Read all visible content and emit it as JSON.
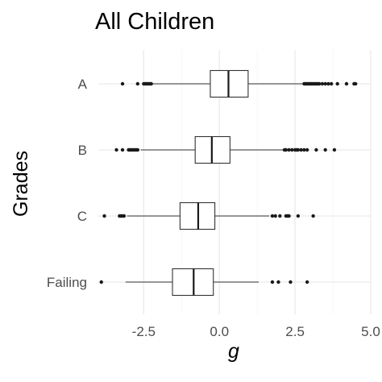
{
  "chart_data": {
    "type": "boxplot",
    "orientation": "horizontal",
    "title": "All Children",
    "xlabel": "g",
    "ylabel": "Grades",
    "xlim": [
      -4.0,
      5.0
    ],
    "xticks": [
      -2.5,
      0.0,
      2.5,
      5.0
    ],
    "xtick_labels": [
      "-2.5",
      "0.0",
      "2.5",
      "5.0"
    ],
    "grid": true,
    "legend": "none",
    "categories": [
      "A",
      "B",
      "C",
      "Failing"
    ],
    "series": [
      {
        "category": "A",
        "whisker_low": -2.2,
        "q1": -0.3,
        "median": 0.3,
        "q3": 0.95,
        "whisker_high": 2.75,
        "outliers": [
          -3.2,
          -2.7,
          -2.5,
          -2.45,
          -2.4,
          -2.35,
          -2.3,
          -2.25,
          2.8,
          2.85,
          2.9,
          2.95,
          3.0,
          3.05,
          3.1,
          3.15,
          3.2,
          3.25,
          3.3,
          3.4,
          3.5,
          3.6,
          3.7,
          3.9,
          4.2,
          4.45,
          4.5
        ]
      },
      {
        "category": "B",
        "whisker_low": -2.6,
        "q1": -0.8,
        "median": -0.25,
        "q3": 0.35,
        "whisker_high": 2.1,
        "outliers": [
          -3.4,
          -3.2,
          -3.0,
          -2.95,
          -2.9,
          -2.85,
          -2.8,
          -2.75,
          -2.7,
          2.15,
          2.2,
          2.3,
          2.4,
          2.5,
          2.55,
          2.6,
          2.7,
          2.8,
          2.9,
          3.2,
          3.5,
          3.8
        ]
      },
      {
        "category": "C",
        "whisker_low": -3.05,
        "q1": -1.3,
        "median": -0.7,
        "q3": -0.15,
        "whisker_high": 1.65,
        "outliers": [
          -3.8,
          -3.3,
          -3.25,
          -3.2,
          -3.15,
          1.75,
          1.85,
          2.0,
          2.2,
          2.25,
          2.3,
          2.6,
          3.1
        ]
      },
      {
        "category": "Failing",
        "whisker_low": -3.1,
        "q1": -1.55,
        "median": -0.85,
        "q3": -0.2,
        "whisker_high": 1.3,
        "outliers": [
          -3.9,
          1.75,
          1.95,
          2.35,
          2.9
        ]
      }
    ]
  }
}
